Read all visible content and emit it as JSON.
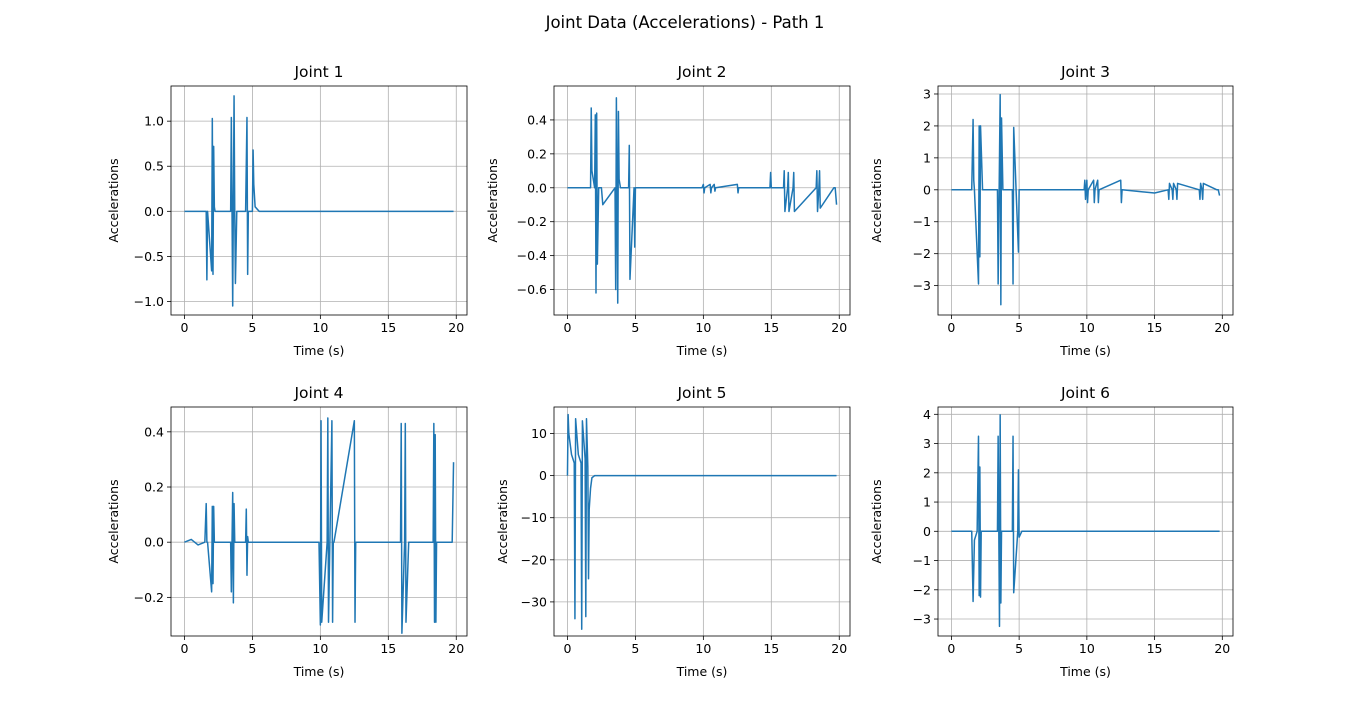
{
  "figure": {
    "title": "Joint Data (Accelerations) - Path 1"
  },
  "style": {
    "line_color": "#1f77b4",
    "grid_color": "#b0b0b0"
  },
  "chart_data": [
    {
      "type": "line",
      "title": "Joint 1",
      "xlabel": "Time (s)",
      "ylabel": "Accelerations",
      "grid": true,
      "xlim": [
        -0.99,
        20.79
      ],
      "ylim": [
        -1.15,
        1.39
      ],
      "xticks": [
        0,
        5,
        10,
        15,
        20
      ],
      "xtick_labels": [
        "0",
        "5",
        "10",
        "15",
        "20"
      ],
      "yticks": [
        -1.0,
        -0.5,
        0.0,
        0.5,
        1.0
      ],
      "ytick_labels": [
        "−1.0",
        "−0.5",
        "0.0",
        "0.5",
        "1.0"
      ],
      "series": [
        {
          "x": [
            0,
            0.6,
            1.6,
            1.65,
            1.7,
            2.0,
            2.05,
            2.1,
            2.15,
            2.2,
            2.25,
            2.3,
            2.4,
            3.4,
            3.45,
            3.5,
            3.55,
            3.65,
            3.7,
            3.75,
            3.85,
            3.9,
            4.5,
            4.6,
            4.65,
            4.7,
            5.0,
            5.05,
            5.1,
            5.2,
            5.5,
            19.8
          ],
          "y": [
            0.0,
            0.0,
            0.0,
            -0.76,
            0.0,
            -0.66,
            1.03,
            -0.7,
            0.72,
            0.05,
            0.0,
            0.0,
            0.0,
            0.0,
            1.04,
            0.0,
            -1.05,
            1.28,
            0.0,
            -0.8,
            0.0,
            0.0,
            0.0,
            1.04,
            -0.7,
            0.0,
            0.0,
            0.68,
            0.3,
            0.05,
            0.0,
            0.0
          ]
        }
      ]
    },
    {
      "type": "line",
      "title": "Joint 2",
      "xlabel": "Time (s)",
      "ylabel": "Accelerations",
      "grid": true,
      "xlim": [
        -0.99,
        20.79
      ],
      "ylim": [
        -0.75,
        0.6
      ],
      "xticks": [
        0,
        5,
        10,
        15,
        20
      ],
      "xtick_labels": [
        "0",
        "5",
        "10",
        "15",
        "20"
      ],
      "yticks": [
        -0.6,
        -0.4,
        -0.2,
        0.0,
        0.2,
        0.4
      ],
      "ytick_labels": [
        "−0.6",
        "−0.4",
        "−0.2",
        "0.0",
        "0.2",
        "0.4"
      ],
      "series": [
        {
          "x": [
            0,
            1.7,
            1.75,
            1.8,
            2.0,
            2.05,
            2.1,
            2.15,
            2.2,
            2.3,
            2.5,
            2.6,
            3.5,
            3.55,
            3.6,
            3.7,
            3.75,
            3.8,
            3.9,
            4.0,
            4.5,
            4.55,
            4.6,
            4.9,
            4.95,
            5.0,
            5.2,
            9.9,
            10.0,
            10.05,
            10.1,
            10.5,
            10.55,
            10.6,
            10.8,
            10.85,
            10.9,
            12.5,
            12.55,
            12.6,
            14.9,
            14.95,
            15.0,
            15.2,
            15.9,
            15.95,
            16.0,
            16.2,
            16.25,
            16.3,
            16.6,
            16.65,
            16.7,
            18.3,
            18.35,
            18.4,
            18.5,
            18.55,
            18.6,
            19.6,
            19.7,
            19.8
          ],
          "y": [
            0.0,
            0.0,
            0.47,
            0.1,
            0.0,
            0.43,
            -0.62,
            0.44,
            -0.45,
            0.0,
            0.0,
            -0.1,
            0.0,
            -0.6,
            0.53,
            -0.68,
            0.45,
            0.05,
            0.0,
            0.0,
            0.0,
            0.25,
            -0.54,
            0.0,
            -0.35,
            0.0,
            0.0,
            0.0,
            0.02,
            -0.03,
            0.0,
            0.02,
            -0.03,
            0.0,
            0.02,
            -0.02,
            0.0,
            0.02,
            -0.03,
            0.0,
            0.0,
            0.09,
            0.0,
            0.0,
            0.0,
            0.1,
            -0.14,
            0.0,
            0.09,
            -0.14,
            0.0,
            0.09,
            -0.14,
            0.0,
            0.1,
            -0.14,
            0.0,
            0.1,
            -0.12,
            0.0,
            0.0,
            -0.1
          ]
        }
      ]
    },
    {
      "type": "line",
      "title": "Joint 3",
      "xlabel": "Time (s)",
      "ylabel": "Accelerations",
      "grid": true,
      "xlim": [
        -0.99,
        20.79
      ],
      "ylim": [
        -3.92,
        3.25
      ],
      "xticks": [
        0,
        5,
        10,
        15,
        20
      ],
      "xtick_labels": [
        "0",
        "5",
        "10",
        "15",
        "20"
      ],
      "yticks": [
        -3,
        -2,
        -1,
        0,
        1,
        2,
        3
      ],
      "ytick_labels": [
        "−3",
        "−2",
        "−1",
        "0",
        "1",
        "2",
        "3"
      ],
      "series": [
        {
          "x": [
            0,
            1.5,
            1.6,
            1.65,
            1.7,
            2.0,
            2.05,
            2.1,
            2.15,
            2.3,
            2.5,
            3.4,
            3.45,
            3.6,
            3.65,
            3.7,
            3.8,
            3.9,
            4.5,
            4.55,
            4.6,
            4.95,
            5.0,
            5.1,
            9.8,
            9.85,
            9.9,
            10.0,
            10.05,
            10.1,
            10.5,
            10.55,
            10.6,
            10.8,
            10.85,
            10.9,
            12.5,
            12.55,
            12.6,
            15.0,
            16.0,
            16.05,
            16.1,
            16.3,
            16.35,
            16.4,
            16.6,
            16.65,
            16.7,
            18.3,
            18.35,
            18.4,
            18.5,
            18.55,
            18.6,
            19.6,
            19.7,
            19.8
          ],
          "y": [
            0.0,
            0.0,
            2.2,
            0.3,
            0.0,
            -2.95,
            2.0,
            -2.1,
            2.0,
            0.0,
            0.0,
            0.0,
            -2.95,
            2.98,
            -3.6,
            2.25,
            0.0,
            0.0,
            0.0,
            -2.95,
            1.95,
            -1.95,
            0.0,
            0.0,
            0.0,
            0.3,
            -0.3,
            0.3,
            -0.4,
            0.0,
            0.3,
            -0.4,
            0.0,
            0.3,
            -0.4,
            0.0,
            0.3,
            -0.4,
            0.0,
            -0.1,
            0.0,
            -0.3,
            0.2,
            0.0,
            -0.3,
            0.2,
            0.0,
            -0.3,
            0.2,
            0.0,
            -0.3,
            0.2,
            0.0,
            -0.3,
            0.2,
            0.0,
            0.0,
            -0.18
          ]
        }
      ]
    },
    {
      "type": "line",
      "title": "Joint 4",
      "xlabel": "Time (s)",
      "ylabel": "Accelerations",
      "grid": true,
      "xlim": [
        -0.99,
        20.79
      ],
      "ylim": [
        -0.34,
        0.49
      ],
      "xticks": [
        0,
        5,
        10,
        15,
        20
      ],
      "xtick_labels": [
        "0",
        "5",
        "10",
        "15",
        "20"
      ],
      "yticks": [
        -0.2,
        0.0,
        0.2,
        0.4
      ],
      "ytick_labels": [
        "−0.2",
        "0.0",
        "0.2",
        "0.4"
      ],
      "series": [
        {
          "x": [
            0,
            0.5,
            1.0,
            1.5,
            1.6,
            1.65,
            1.7,
            2.0,
            2.05,
            2.1,
            2.15,
            2.2,
            2.3,
            2.5,
            3.4,
            3.45,
            3.55,
            3.6,
            3.65,
            3.7,
            3.8,
            4.5,
            4.55,
            4.6,
            4.65,
            4.7,
            5.0,
            8.0,
            9.9,
            10.0,
            10.05,
            10.1,
            10.5,
            10.55,
            10.6,
            10.85,
            10.9,
            10.95,
            11.0,
            12.5,
            12.55,
            12.6,
            14.0,
            15.9,
            15.95,
            16.0,
            16.2,
            16.25,
            16.3,
            16.5,
            18.3,
            18.35,
            18.4,
            18.45,
            18.5,
            18.55,
            18.6,
            19.6,
            19.7,
            19.8
          ],
          "y": [
            0.0,
            0.01,
            -0.01,
            0.0,
            0.14,
            0.0,
            0.0,
            -0.18,
            0.13,
            -0.15,
            0.13,
            0.0,
            0.0,
            0.0,
            0.0,
            -0.18,
            0.18,
            -0.22,
            0.14,
            0.0,
            0.0,
            0.0,
            0.12,
            -0.12,
            0.02,
            0.0,
            0.0,
            0.0,
            0.0,
            -0.3,
            0.44,
            -0.29,
            0.0,
            0.45,
            -0.29,
            0.44,
            -0.29,
            0.0,
            0.0,
            0.44,
            -0.29,
            0.0,
            0.0,
            0.0,
            0.43,
            -0.33,
            0.0,
            0.43,
            -0.29,
            0.0,
            0.0,
            0.43,
            -0.29,
            0.39,
            -0.29,
            0.0,
            0.0,
            0.0,
            0.0,
            0.29
          ]
        }
      ]
    },
    {
      "type": "line",
      "title": "Joint 5",
      "xlabel": "Time (s)",
      "ylabel": "Accelerations",
      "grid": true,
      "xlim": [
        -0.99,
        20.79
      ],
      "ylim": [
        -38.1,
        16.3
      ],
      "xticks": [
        0,
        5,
        10,
        15,
        20
      ],
      "xtick_labels": [
        "0",
        "5",
        "10",
        "15",
        "20"
      ],
      "yticks": [
        -30,
        -20,
        -10,
        0,
        10
      ],
      "ytick_labels": [
        "−30",
        "−20",
        "−10",
        "0",
        "10"
      ],
      "series": [
        {
          "x": [
            0,
            0.05,
            0.1,
            0.3,
            0.5,
            0.55,
            0.6,
            0.8,
            1.0,
            1.05,
            1.1,
            1.3,
            1.35,
            1.4,
            1.5,
            1.55,
            1.6,
            1.7,
            1.8,
            2.0,
            19.8
          ],
          "y": [
            0.0,
            14.5,
            10.0,
            5.0,
            3.0,
            -34.0,
            13.5,
            5.0,
            3.0,
            -36.5,
            13.0,
            4.0,
            -33.5,
            13.5,
            2.0,
            -24.5,
            -8.0,
            -3.0,
            -0.5,
            0.0,
            0.0
          ]
        }
      ]
    },
    {
      "type": "line",
      "title": "Joint 6",
      "xlabel": "Time (s)",
      "ylabel": "Accelerations",
      "grid": true,
      "xlim": [
        -0.99,
        20.79
      ],
      "ylim": [
        -3.58,
        4.25
      ],
      "xticks": [
        0,
        5,
        10,
        15,
        20
      ],
      "xtick_labels": [
        "0",
        "5",
        "10",
        "15",
        "20"
      ],
      "yticks": [
        -3,
        -2,
        -1,
        0,
        1,
        2,
        3,
        4
      ],
      "ytick_labels": [
        "−3",
        "−2",
        "−1",
        "0",
        "1",
        "2",
        "3",
        "4"
      ],
      "series": [
        {
          "x": [
            0,
            1.5,
            1.6,
            1.7,
            1.9,
            2.0,
            2.05,
            2.1,
            2.15,
            2.2,
            2.4,
            3.4,
            3.45,
            3.55,
            3.6,
            3.65,
            3.7,
            3.9,
            4.5,
            4.55,
            4.6,
            4.9,
            4.95,
            5.0,
            5.2,
            19.8
          ],
          "y": [
            0.0,
            0.0,
            -2.4,
            -0.3,
            0.0,
            3.25,
            -2.2,
            2.2,
            -2.25,
            0.0,
            0.0,
            0.0,
            3.25,
            -3.25,
            3.98,
            -2.45,
            0.0,
            0.0,
            0.0,
            3.25,
            -2.1,
            0.0,
            2.1,
            -0.2,
            0.0,
            0.0
          ]
        }
      ]
    }
  ]
}
